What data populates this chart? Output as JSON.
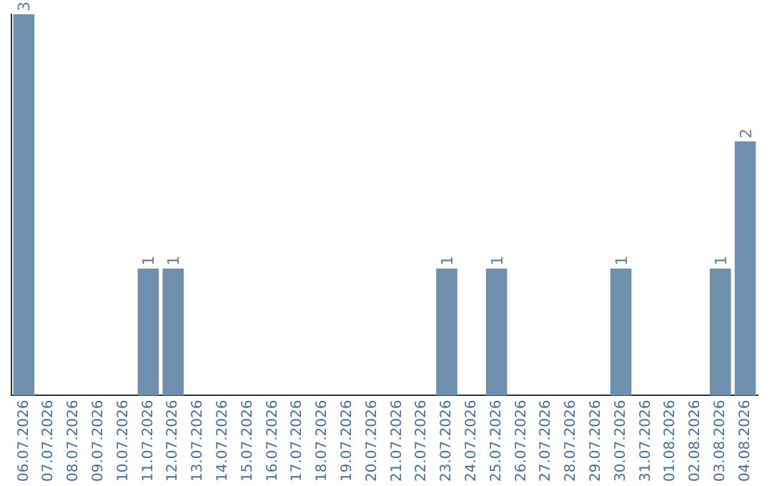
{
  "chart_data": {
    "type": "bar",
    "categories": [
      "06.07.2026",
      "07.07.2026",
      "08.07.2026",
      "09.07.2026",
      "10.07.2026",
      "11.07.2026",
      "12.07.2026",
      "13.07.2026",
      "14.07.2026",
      "15.07.2026",
      "16.07.2026",
      "17.07.2026",
      "18.07.2026",
      "19.07.2026",
      "20.07.2026",
      "21.07.2026",
      "22.07.2026",
      "23.07.2026",
      "24.07.2026",
      "25.07.2026",
      "26.07.2026",
      "27.07.2026",
      "28.07.2026",
      "29.07.2026",
      "30.07.2026",
      "31.07.2026",
      "01.08.2026",
      "02.08.2026",
      "03.08.2026",
      "04.08.2026"
    ],
    "values": [
      3,
      0,
      0,
      0,
      0,
      1,
      1,
      0,
      0,
      0,
      0,
      0,
      0,
      0,
      0,
      0,
      0,
      1,
      0,
      1,
      0,
      0,
      0,
      0,
      1,
      0,
      0,
      0,
      1,
      2
    ],
    "value_labels": [
      "3",
      null,
      null,
      null,
      null,
      "1",
      "1",
      null,
      null,
      null,
      null,
      null,
      null,
      null,
      null,
      null,
      null,
      "1",
      null,
      "1",
      null,
      null,
      null,
      null,
      "1",
      null,
      null,
      null,
      "1",
      "2"
    ],
    "color": "#6f8fae",
    "grid": false,
    "legend": false,
    "tick_labels": "x"
  }
}
